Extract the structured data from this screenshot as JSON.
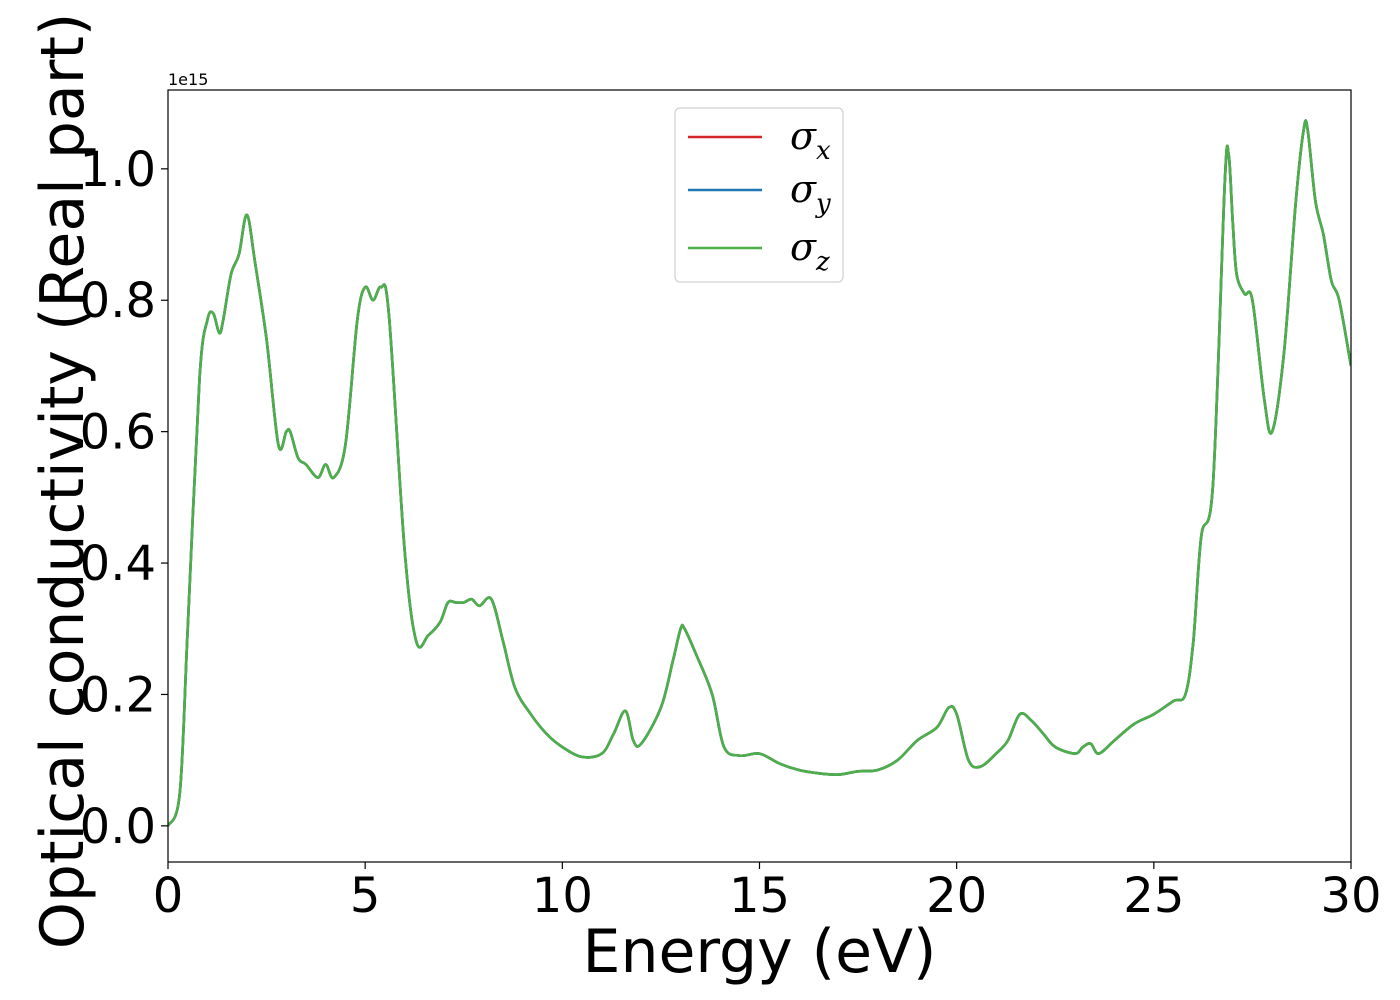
{
  "chart_data": {
    "type": "line",
    "xlabel": "Energy (eV)",
    "ylabel": "Optical conductivity (Real part)",
    "y_offset_text": "1e15",
    "xlim": [
      0,
      30
    ],
    "ylim": [
      -0.055,
      1.12
    ],
    "y_scale": 1000000000000000.0,
    "xticks": [
      0,
      5,
      10,
      15,
      20,
      25,
      30
    ],
    "xtick_labels": [
      "0",
      "5",
      "10",
      "15",
      "20",
      "25",
      "30"
    ],
    "yticks": [
      0.0,
      0.2,
      0.4,
      0.6,
      0.8,
      1.0
    ],
    "ytick_labels": [
      "0.0",
      "0.2",
      "0.4",
      "0.6",
      "0.8",
      "1.0"
    ],
    "grid": false,
    "legend_position": "upper-center",
    "series": [
      {
        "name": "σx",
        "symbol": "σ",
        "subscript": "x",
        "color": "#d62728"
      },
      {
        "name": "σy",
        "symbol": "σ",
        "subscript": "y",
        "color": "#1f77b4"
      },
      {
        "name": "σz",
        "symbol": "σ",
        "subscript": "z",
        "color": "#4daf4a"
      }
    ],
    "x": [
      0,
      0.3,
      0.5,
      0.8,
      1.0,
      1.15,
      1.3,
      1.4,
      1.6,
      1.8,
      2.0,
      2.2,
      2.5,
      2.8,
      3.0,
      3.1,
      3.3,
      3.5,
      3.8,
      4.0,
      4.2,
      4.5,
      4.8,
      5.0,
      5.2,
      5.4,
      5.6,
      6.0,
      6.3,
      6.6,
      6.9,
      7.1,
      7.3,
      7.5,
      7.7,
      7.9,
      8.2,
      8.5,
      8.8,
      9.2,
      9.6,
      10.0,
      10.5,
      11.0,
      11.3,
      11.6,
      11.8,
      12.0,
      12.5,
      12.8,
      13.0,
      13.1,
      13.4,
      13.8,
      14.1,
      14.5,
      15.0,
      15.5,
      16.0,
      16.5,
      17.0,
      17.5,
      18.0,
      18.5,
      19.0,
      19.5,
      19.8,
      20.0,
      20.3,
      20.6,
      21.0,
      21.3,
      21.6,
      21.9,
      22.2,
      22.5,
      23.0,
      23.2,
      23.4,
      23.6,
      24.0,
      24.5,
      25.0,
      25.5,
      25.8,
      26.0,
      26.2,
      26.5,
      26.8,
      26.9,
      27.0,
      27.1,
      27.3,
      27.5,
      27.8,
      28.0,
      28.3,
      28.6,
      28.8,
      28.9,
      29.1,
      29.3,
      29.5,
      29.7,
      30.0
    ],
    "y": [
      0.0,
      0.05,
      0.3,
      0.68,
      0.77,
      0.78,
      0.75,
      0.77,
      0.84,
      0.87,
      0.93,
      0.86,
      0.74,
      0.58,
      0.6,
      0.6,
      0.56,
      0.55,
      0.53,
      0.55,
      0.53,
      0.58,
      0.77,
      0.82,
      0.8,
      0.82,
      0.78,
      0.42,
      0.28,
      0.29,
      0.31,
      0.34,
      0.34,
      0.34,
      0.345,
      0.335,
      0.345,
      0.28,
      0.21,
      0.17,
      0.14,
      0.12,
      0.105,
      0.11,
      0.14,
      0.175,
      0.13,
      0.125,
      0.18,
      0.25,
      0.3,
      0.3,
      0.26,
      0.2,
      0.12,
      0.107,
      0.11,
      0.095,
      0.085,
      0.08,
      0.078,
      0.083,
      0.085,
      0.1,
      0.13,
      0.15,
      0.18,
      0.17,
      0.1,
      0.09,
      0.11,
      0.13,
      0.17,
      0.16,
      0.14,
      0.12,
      0.11,
      0.12,
      0.125,
      0.11,
      0.13,
      0.155,
      0.17,
      0.19,
      0.2,
      0.28,
      0.44,
      0.52,
      0.98,
      1.02,
      0.92,
      0.84,
      0.81,
      0.8,
      0.65,
      0.6,
      0.72,
      0.95,
      1.06,
      1.06,
      0.95,
      0.9,
      0.83,
      0.8,
      0.7
    ]
  }
}
